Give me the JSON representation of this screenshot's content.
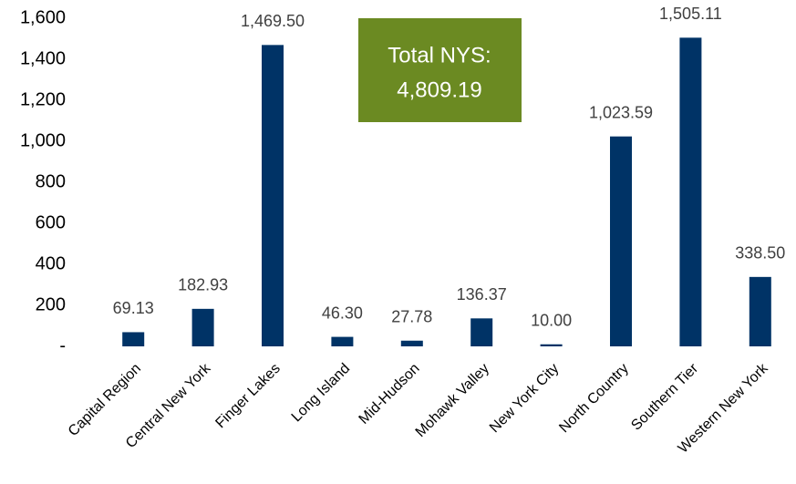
{
  "chart_data": {
    "type": "bar",
    "categories": [
      "Capital Region",
      "Central New York",
      "Finger Lakes",
      "Long Island",
      "Mid-Hudson",
      "Mohawk Valley",
      "New York City",
      "North Country",
      "Southern Tier",
      "Western New York"
    ],
    "values": [
      69.13,
      182.93,
      1469.5,
      46.3,
      27.78,
      136.37,
      10.0,
      1023.59,
      1505.11,
      338.5
    ],
    "value_labels": [
      "69.13",
      "182.93",
      "1,469.50",
      "46.30",
      "27.78",
      "136.37",
      "10.00",
      "1,023.59",
      "1,505.11",
      "338.50"
    ],
    "color": "#003366",
    "ylim": [
      0,
      1600
    ],
    "yticks": [
      {
        "value": 0,
        "label": "-"
      },
      200,
      400,
      600,
      800,
      {
        "value": 1000,
        "label": "1,000"
      },
      {
        "value": 1200,
        "label": "1,200"
      },
      {
        "value": 1400,
        "label": "1,400"
      },
      {
        "value": 1600,
        "label": "1,600"
      }
    ],
    "grid": false,
    "annotation": {
      "lines": [
        "Total NYS:",
        "4,809.19"
      ],
      "color": "#6b8a22"
    }
  }
}
